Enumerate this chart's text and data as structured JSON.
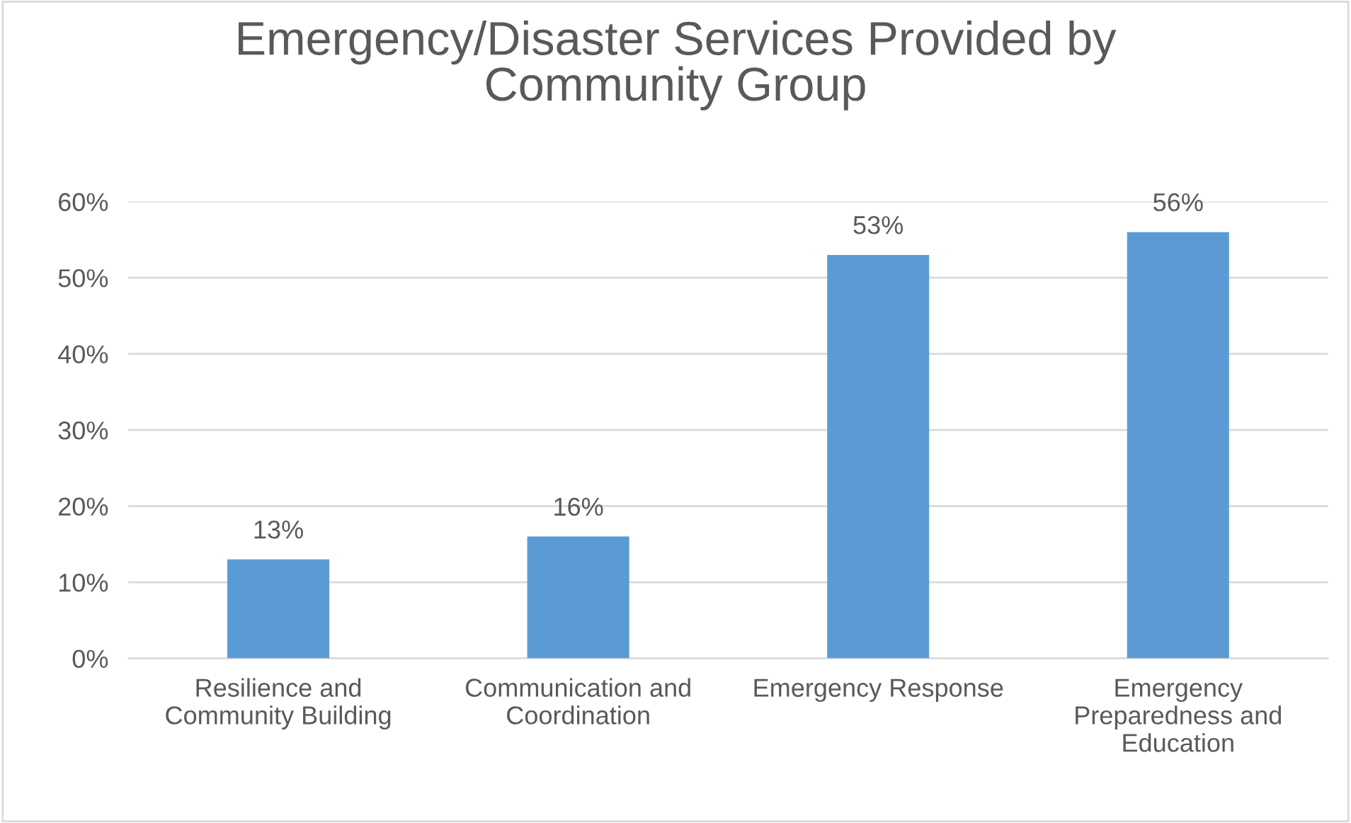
{
  "chart_data": {
    "type": "bar",
    "title": "Emergency/Disaster Services Provided by\nCommunity Group",
    "categories": [
      "Resilience and\nCommunity Building",
      "Communication and\nCoordination",
      "Emergency Response",
      "Emergency\nPreparedness and\nEducation"
    ],
    "values": [
      13,
      16,
      53,
      56
    ],
    "value_labels": [
      "13%",
      "16%",
      "53%",
      "56%"
    ],
    "color": "#5b9bd5",
    "ylim": [
      0,
      60
    ],
    "yticks": [
      {
        "value": 0,
        "label": "0%"
      },
      {
        "value": 10,
        "label": "10%"
      },
      {
        "value": 20,
        "label": "20%"
      },
      {
        "value": 30,
        "label": "30%"
      },
      {
        "value": 40,
        "label": "40%"
      },
      {
        "value": 50,
        "label": "50%"
      },
      {
        "value": 60,
        "label": "60%"
      }
    ],
    "grid": "y"
  }
}
